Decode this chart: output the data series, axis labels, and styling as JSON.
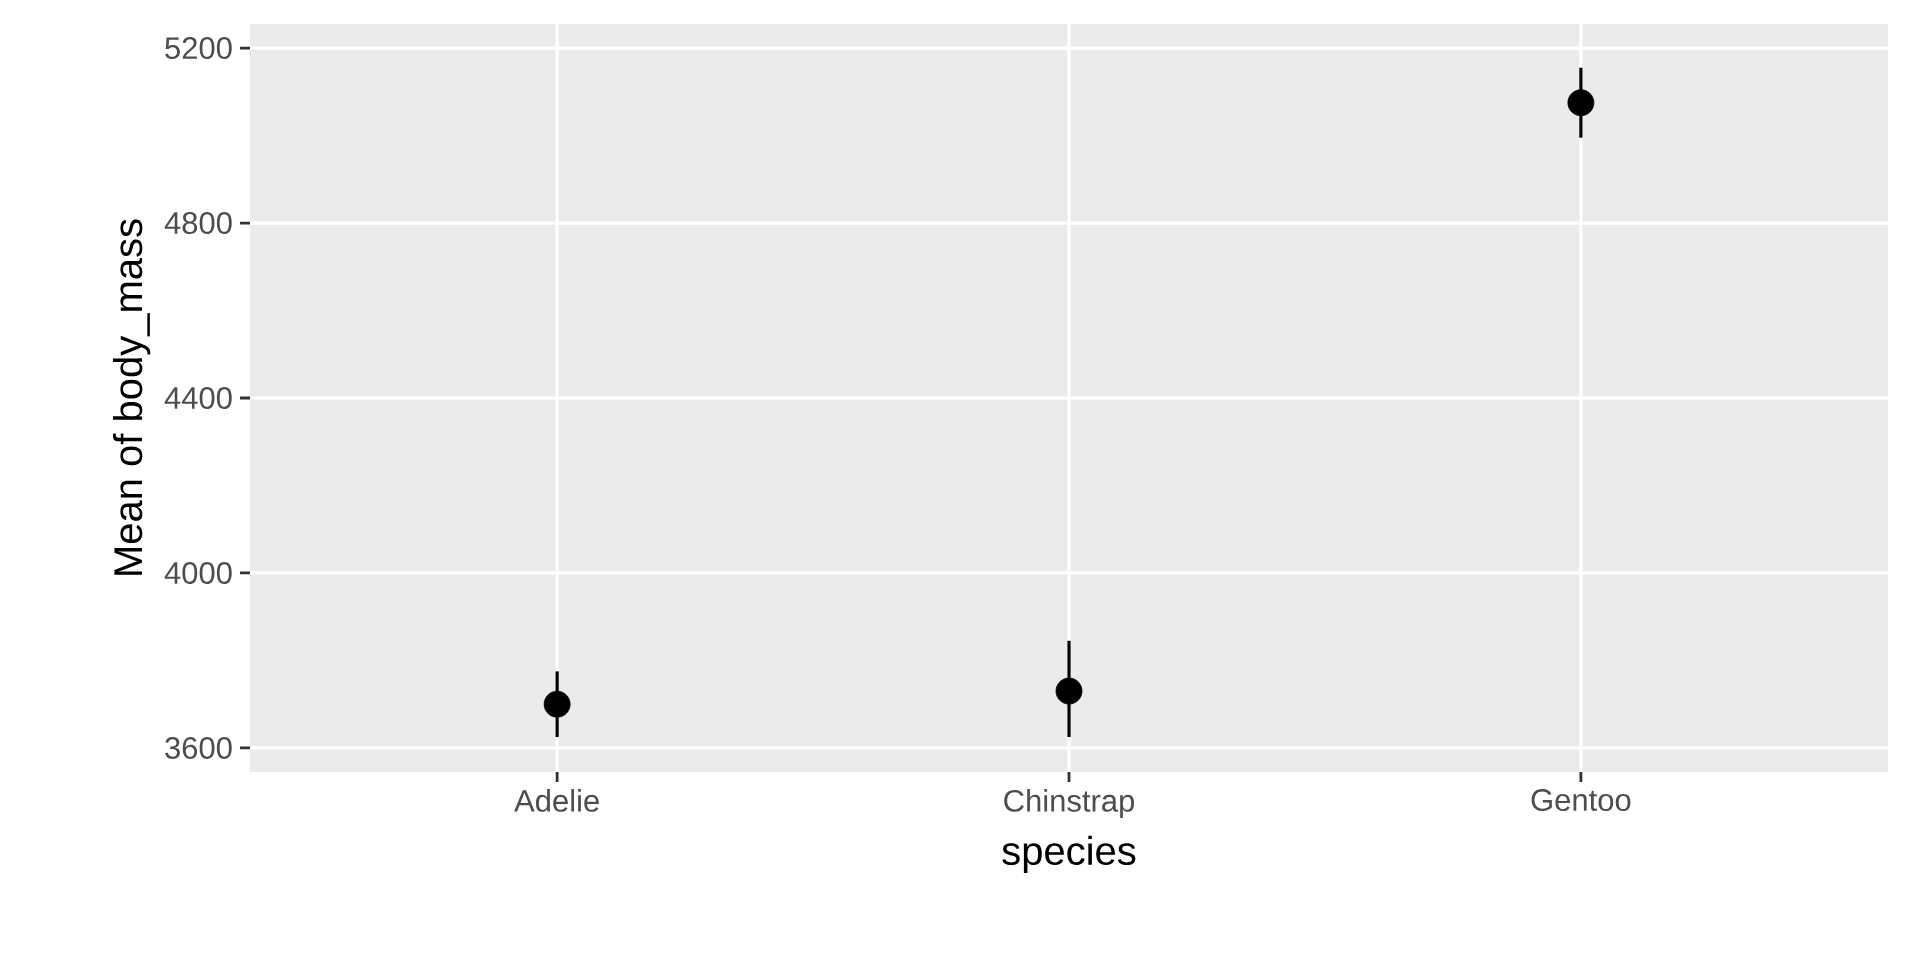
{
  "chart_data": {
    "type": "scatter",
    "xlabel": "species",
    "ylabel": "Mean of body_mass",
    "categories": [
      "Adelie",
      "Chinstrap",
      "Gentoo"
    ],
    "values": [
      3700,
      3730,
      5075
    ],
    "errors": [
      [
        3625,
        3775
      ],
      [
        3625,
        3845
      ],
      [
        4995,
        5155
      ]
    ],
    "color": "#000000",
    "marker": "circle",
    "ylim": [
      3545,
      5255
    ],
    "yticks": [
      3600,
      4000,
      4400,
      4800,
      5200
    ],
    "grid": true
  }
}
